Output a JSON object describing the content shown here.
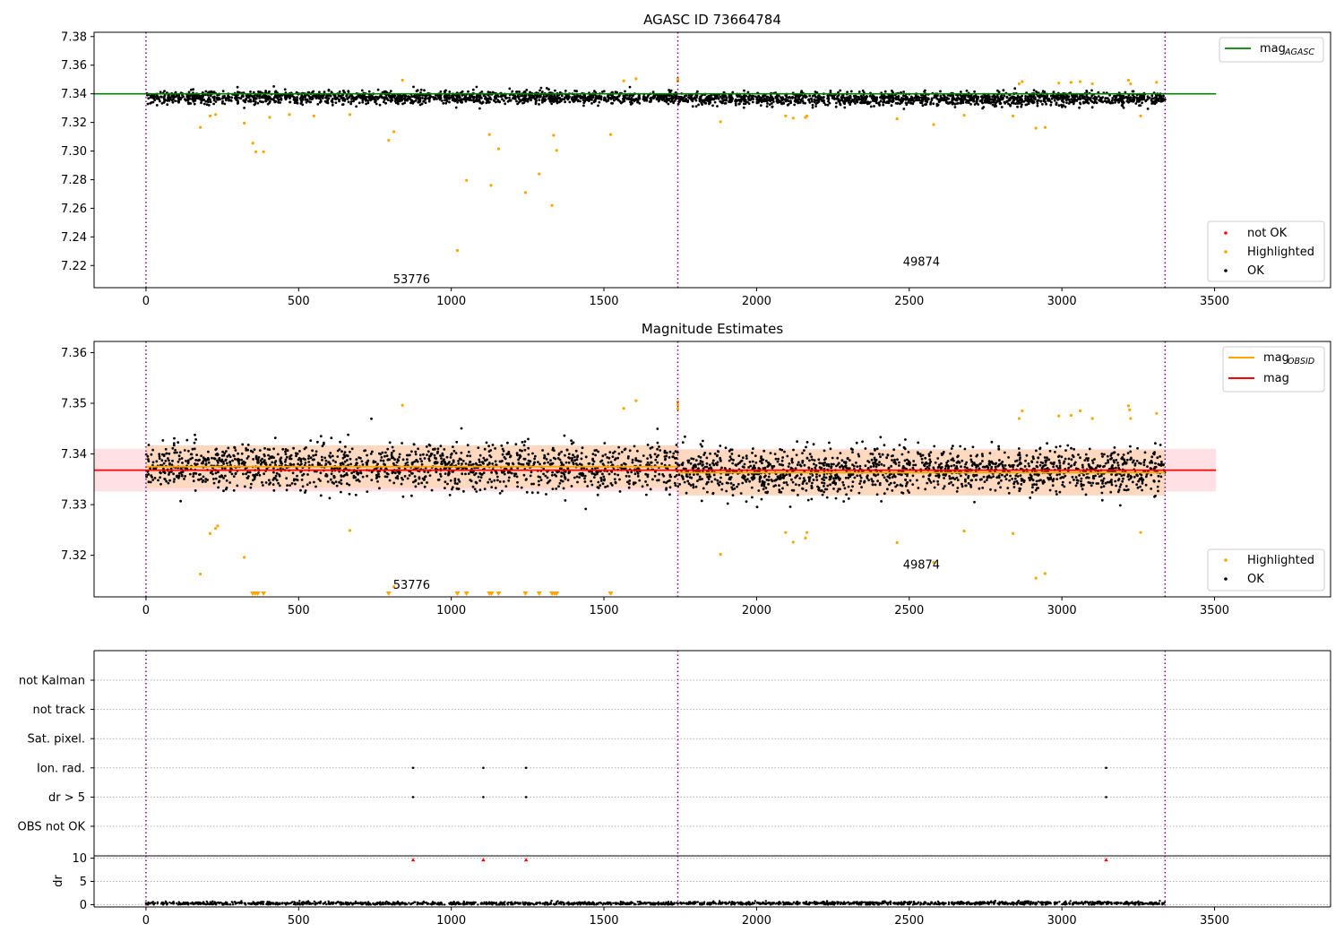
{
  "figure": {
    "title": "AGASC ID 73664784",
    "obsid_boundaries": [
      0,
      1742,
      3338
    ],
    "obsid_labels": [
      {
        "text": "53776",
        "x": 870
      },
      {
        "text": "49874",
        "x": 2540
      }
    ],
    "colors": {
      "ok": "#000000",
      "highlighted": "#ffa500",
      "not_ok": "#ff0000",
      "mag_agasc": "#008000",
      "mag_obsid": "#ffa500",
      "mag": "#ff0000",
      "band_mag": "#ffe0e4",
      "band_obsid": "#ffd9bf",
      "boundary": "#800080",
      "grid": "#b0b0b0"
    }
  },
  "chart_data": [
    {
      "type": "scatter",
      "panel": "top",
      "title": "AGASC ID 73664784",
      "xlim": [
        -170,
        3880
      ],
      "ylim": [
        7.2045,
        7.383
      ],
      "xticks": [
        "0",
        "500",
        "1000",
        "1500",
        "2000",
        "2500",
        "3000",
        "3500"
      ],
      "yticks": [
        "7.22",
        "7.24",
        "7.26",
        "7.28",
        "7.30",
        "7.32",
        "7.34",
        "7.36",
        "7.38"
      ],
      "mag_agasc": 7.34,
      "mag_agasc_x": [
        -170,
        3505
      ],
      "ok_band": [
        {
          "x": [
            0,
            1742
          ],
          "center": 7.3375,
          "spread": 0.0045
        },
        {
          "x": [
            1742,
            3338
          ],
          "center": 7.3365,
          "spread": 0.0045
        }
      ],
      "highlighted_points": [
        [
          178,
          7.3165
        ],
        [
          210,
          7.3245
        ],
        [
          228,
          7.3255
        ],
        [
          322,
          7.3195
        ],
        [
          350,
          7.3055
        ],
        [
          360,
          7.2995
        ],
        [
          385,
          7.2995
        ],
        [
          405,
          7.3235
        ],
        [
          470,
          7.3255
        ],
        [
          550,
          7.3245
        ],
        [
          668,
          7.3255
        ],
        [
          795,
          7.3075
        ],
        [
          812,
          7.3135
        ],
        [
          840,
          7.3495
        ],
        [
          1020,
          7.2305
        ],
        [
          1050,
          7.2795
        ],
        [
          1125,
          7.3115
        ],
        [
          1130,
          7.276
        ],
        [
          1155,
          7.3015
        ],
        [
          1243,
          7.271
        ],
        [
          1288,
          7.284
        ],
        [
          1330,
          7.262
        ],
        [
          1335,
          7.311
        ],
        [
          1345,
          7.3005
        ],
        [
          1522,
          7.3115
        ],
        [
          1565,
          7.349
        ],
        [
          1605,
          7.3505
        ],
        [
          1742,
          7.349
        ],
        [
          1742,
          7.3505
        ],
        [
          1882,
          7.3205
        ],
        [
          2095,
          7.3245
        ],
        [
          2120,
          7.323
        ],
        [
          2160,
          7.3235
        ],
        [
          2165,
          7.3245
        ],
        [
          2460,
          7.3225
        ],
        [
          2580,
          7.3185
        ],
        [
          2680,
          7.325
        ],
        [
          2840,
          7.3245
        ],
        [
          2860,
          7.347
        ],
        [
          2870,
          7.3485
        ],
        [
          2915,
          7.316
        ],
        [
          2945,
          7.3165
        ],
        [
          2990,
          7.3475
        ],
        [
          3030,
          7.348
        ],
        [
          3060,
          7.3485
        ],
        [
          3100,
          7.347
        ],
        [
          3218,
          7.3495
        ],
        [
          3225,
          7.347
        ],
        [
          3258,
          7.3245
        ],
        [
          3310,
          7.348
        ]
      ],
      "annotations": [
        {
          "text": "53776",
          "x": 870,
          "y": 7.2075
        },
        {
          "text": "49874",
          "x": 2540,
          "y": 7.22
        }
      ],
      "legend": [
        {
          "label": "mag",
          "sub": "AGASC",
          "kind": "line",
          "color": "#008000",
          "position": "top-right"
        },
        {
          "label": "not OK",
          "kind": "dot",
          "color": "#ff0000",
          "position": "bottom-right"
        },
        {
          "label": "Highlighted",
          "kind": "dot",
          "color": "#ffa500",
          "position": "bottom-right"
        },
        {
          "label": "OK",
          "kind": "dot",
          "color": "#000000",
          "position": "bottom-right"
        }
      ]
    },
    {
      "type": "scatter",
      "panel": "middle",
      "title": "Magnitude Estimates",
      "xlim": [
        -170,
        3880
      ],
      "ylim": [
        7.3118,
        7.3622
      ],
      "xticks": [
        "0",
        "500",
        "1000",
        "1500",
        "2000",
        "2500",
        "3000",
        "3500"
      ],
      "yticks": [
        "7.32",
        "7.33",
        "7.34",
        "7.35",
        "7.36"
      ],
      "mag": 7.3368,
      "mag_x": [
        -170,
        3505
      ],
      "mag_band": [
        7.3326,
        7.341
      ],
      "mag_obsid": [
        {
          "x": [
            0,
            1742
          ],
          "value": 7.3375,
          "band": [
            7.3333,
            7.3417
          ]
        },
        {
          "x": [
            1742,
            3338
          ],
          "value": 7.3363,
          "band": [
            7.3318,
            7.3408
          ]
        }
      ],
      "ok_band": [
        {
          "x": [
            0,
            1742
          ],
          "center": 7.3375,
          "spread": 0.0045
        },
        {
          "x": [
            1742,
            3338
          ],
          "center": 7.3365,
          "spread": 0.0045
        }
      ],
      "highlighted_points": [
        [
          178,
          7.3163
        ],
        [
          210,
          7.3243
        ],
        [
          228,
          7.3253
        ],
        [
          235,
          7.3258
        ],
        [
          322,
          7.3196
        ],
        [
          668,
          7.3249
        ],
        [
          812,
          7.3138
        ],
        [
          840,
          7.3496
        ],
        [
          1565,
          7.349
        ],
        [
          1605,
          7.3505
        ],
        [
          1742,
          7.3489
        ],
        [
          1742,
          7.3497
        ],
        [
          1742,
          7.3503
        ],
        [
          1882,
          7.3202
        ],
        [
          2095,
          7.3245
        ],
        [
          2120,
          7.3226
        ],
        [
          2160,
          7.3234
        ],
        [
          2165,
          7.3245
        ],
        [
          2460,
          7.3225
        ],
        [
          2580,
          7.3186
        ],
        [
          2680,
          7.3248
        ],
        [
          2840,
          7.3243
        ],
        [
          2860,
          7.347
        ],
        [
          2870,
          7.3485
        ],
        [
          2915,
          7.3155
        ],
        [
          2945,
          7.3164
        ],
        [
          2990,
          7.3475
        ],
        [
          3030,
          7.3476
        ],
        [
          3060,
          7.3485
        ],
        [
          3100,
          7.347
        ],
        [
          3218,
          7.3495
        ],
        [
          3222,
          7.3487
        ],
        [
          3225,
          7.347
        ],
        [
          3258,
          7.3245
        ],
        [
          3310,
          7.348
        ]
      ],
      "offscale_low": [
        350,
        358,
        366,
        385,
        795,
        1020,
        1050,
        1125,
        1132,
        1155,
        1243,
        1288,
        1330,
        1338,
        1345,
        1522
      ],
      "annotations": [
        {
          "text": "53776",
          "x": 870,
          "y": 7.3134
        },
        {
          "text": "49874",
          "x": 2540,
          "y": 7.3174
        }
      ],
      "legend": [
        {
          "label": "mag",
          "sub": "OBSID",
          "kind": "line",
          "color": "#ffa500",
          "position": "top-right"
        },
        {
          "label": "mag",
          "sub": "",
          "kind": "line",
          "color": "#ff0000",
          "position": "top-right"
        },
        {
          "label": "Highlighted",
          "kind": "dot",
          "color": "#ffa500",
          "position": "bottom-right"
        },
        {
          "label": "OK",
          "kind": "dot",
          "color": "#000000",
          "position": "bottom-right"
        }
      ]
    },
    {
      "type": "scatter",
      "panel": "flags",
      "xlim": [
        -170,
        3880
      ],
      "categories": [
        "not Kalman",
        "not track",
        "Sat. pixel.",
        "Ion. rad.",
        "dr > 5",
        "OBS not OK"
      ],
      "flag_points": [
        {
          "flag": "Ion. rad.",
          "x": [
            875,
            1105,
            1245,
            3145
          ]
        },
        {
          "flag": "dr > 5",
          "x": [
            875,
            1105,
            1245,
            3145
          ]
        }
      ]
    },
    {
      "type": "scatter",
      "panel": "dr",
      "xlim": [
        -170,
        3880
      ],
      "ylim": [
        -0.5,
        10.5
      ],
      "ylabel": "dr",
      "xticks": [
        "0",
        "500",
        "1000",
        "1500",
        "2000",
        "2500",
        "3000",
        "3500"
      ],
      "yticks": [
        "0",
        "5",
        "10"
      ],
      "clipped_points": [
        875,
        1105,
        1245,
        3145
      ],
      "ok_band": [
        {
          "x": [
            0,
            1742
          ],
          "center": 0.25,
          "spread": 0.18
        },
        {
          "x": [
            1742,
            3338
          ],
          "center": 0.3,
          "spread": 0.18
        }
      ]
    }
  ]
}
